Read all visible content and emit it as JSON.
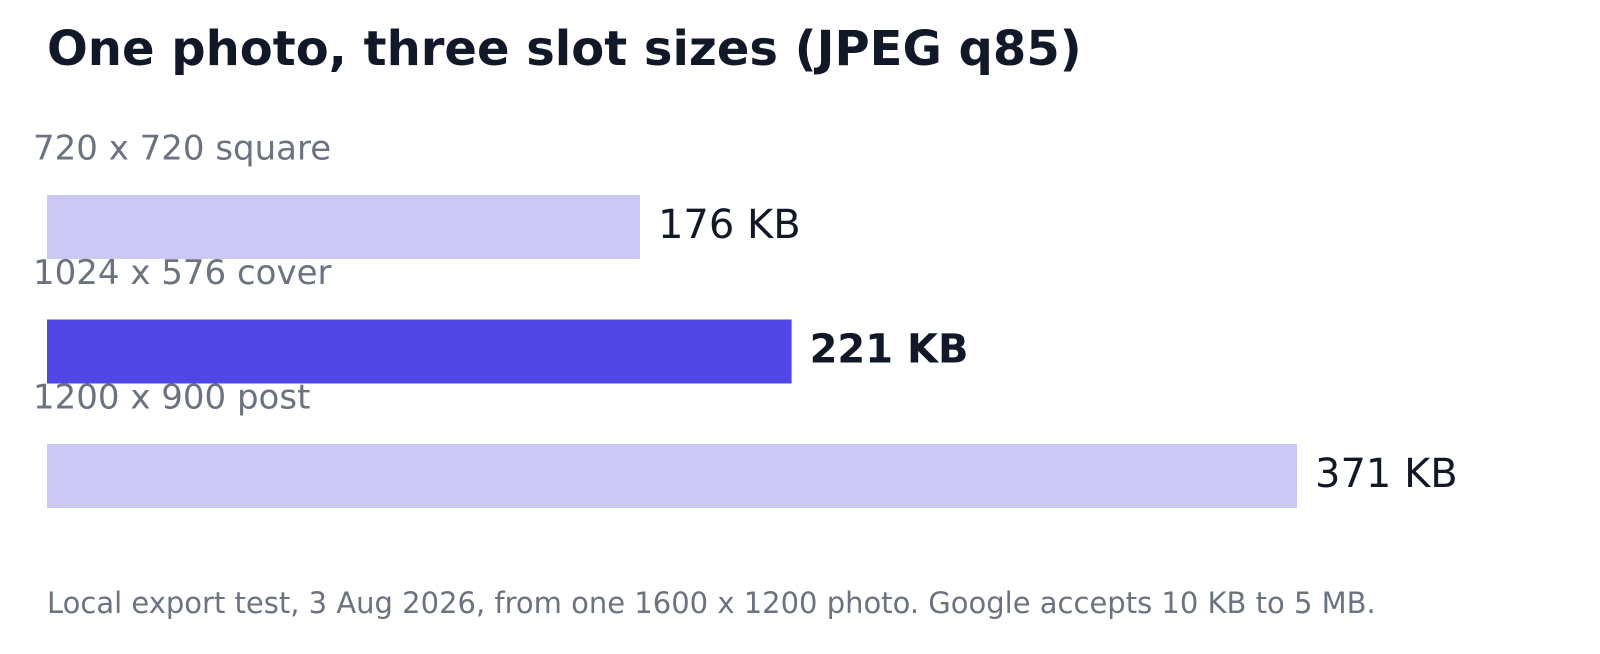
{
  "chart_data": {
    "type": "bar",
    "orientation": "horizontal",
    "title": "One photo, three slot sizes (JPEG q85)",
    "categories": [
      "720 x 720 square",
      "1024 x 576 cover",
      "1200 x 900 post"
    ],
    "values": [
      176,
      221,
      371
    ],
    "value_labels": [
      "176 KB",
      "221 KB",
      "371 KB"
    ],
    "colors": [
      "#cbc8f3",
      "#4f46e5",
      "#cbc8f3"
    ],
    "highlight": 1,
    "caption": "Local export test, 3 Aug 2026, from one 1600 x 1200 photo. Google accepts 10 KB to 5 MB."
  }
}
